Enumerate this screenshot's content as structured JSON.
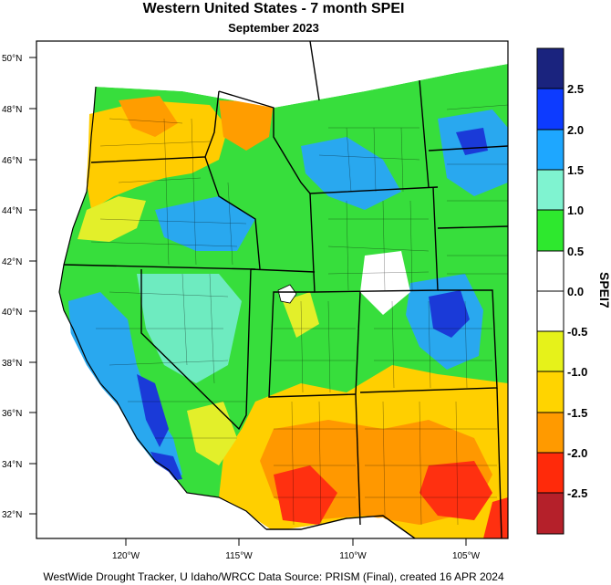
{
  "title": "Western United States - 7 month SPEI",
  "subtitle": "September 2023",
  "footer": "WestWide Drought Tracker, U Idaho/WRCC Data Source: PRISM (Final), created 16 APR 2024",
  "map": {
    "lat_ticks": [
      "50°N",
      "48°N",
      "46°N",
      "44°N",
      "42°N",
      "40°N",
      "38°N",
      "36°N",
      "34°N",
      "32°N"
    ],
    "lon_ticks": [
      "120°W",
      "115°W",
      "110°W",
      "105°W"
    ]
  },
  "colorbar": {
    "title": "SPEI7",
    "labels": [
      "2.5",
      "2.0",
      "1.5",
      "1.0",
      "0.5",
      "0.0",
      "-0.5",
      "-1.0",
      "-1.5",
      "-2.0",
      "-2.5"
    ],
    "colors": [
      "#1a237e",
      "#0d3bff",
      "#1ea7ff",
      "#7ff3d0",
      "#2ee82e",
      "#ffffff",
      "#ffffff",
      "#e6f21a",
      "#ffd400",
      "#ff9a00",
      "#ff2a0a",
      "#b5202a"
    ]
  },
  "legend_palette": {
    "wet_dark": "#1a3ad8",
    "wet_mid": "#27a6ee",
    "wet_light": "#6eebc0",
    "near_wet": "#32dd3a",
    "neutral": "#ffffff",
    "near_dry": "#dcee2a",
    "dry": "#ffcf00",
    "dry_mid": "#ff9800",
    "dry_dark": "#ff3010",
    "dry_extreme": "#c1221f"
  }
}
